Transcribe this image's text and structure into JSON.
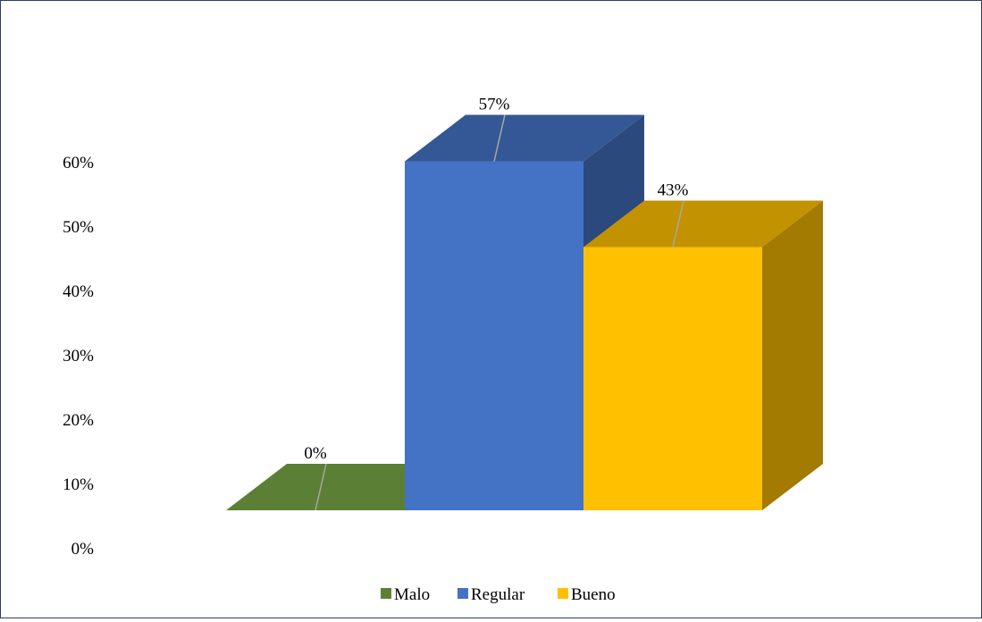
{
  "chart_data": {
    "type": "bar",
    "style": "3d-column",
    "categories": [
      "Malo",
      "Regular",
      "Bueno"
    ],
    "values": [
      0,
      57,
      43
    ],
    "value_format": "percent",
    "data_labels": [
      "0%",
      "57%",
      "43%"
    ],
    "colors": [
      "#5B8035",
      "#4472C4",
      "#FFC000"
    ],
    "title": "",
    "xlabel": "",
    "ylabel": "",
    "ylim": [
      0,
      60
    ],
    "yticks": [
      0,
      10,
      20,
      30,
      40,
      50,
      60
    ],
    "ytick_labels": [
      "0%",
      "10%",
      "20%",
      "30%",
      "40%",
      "50%",
      "60%"
    ],
    "grid": false,
    "legend": {
      "placement": "bottom",
      "entries": [
        "Malo",
        "Regular",
        "Bueno"
      ]
    }
  }
}
